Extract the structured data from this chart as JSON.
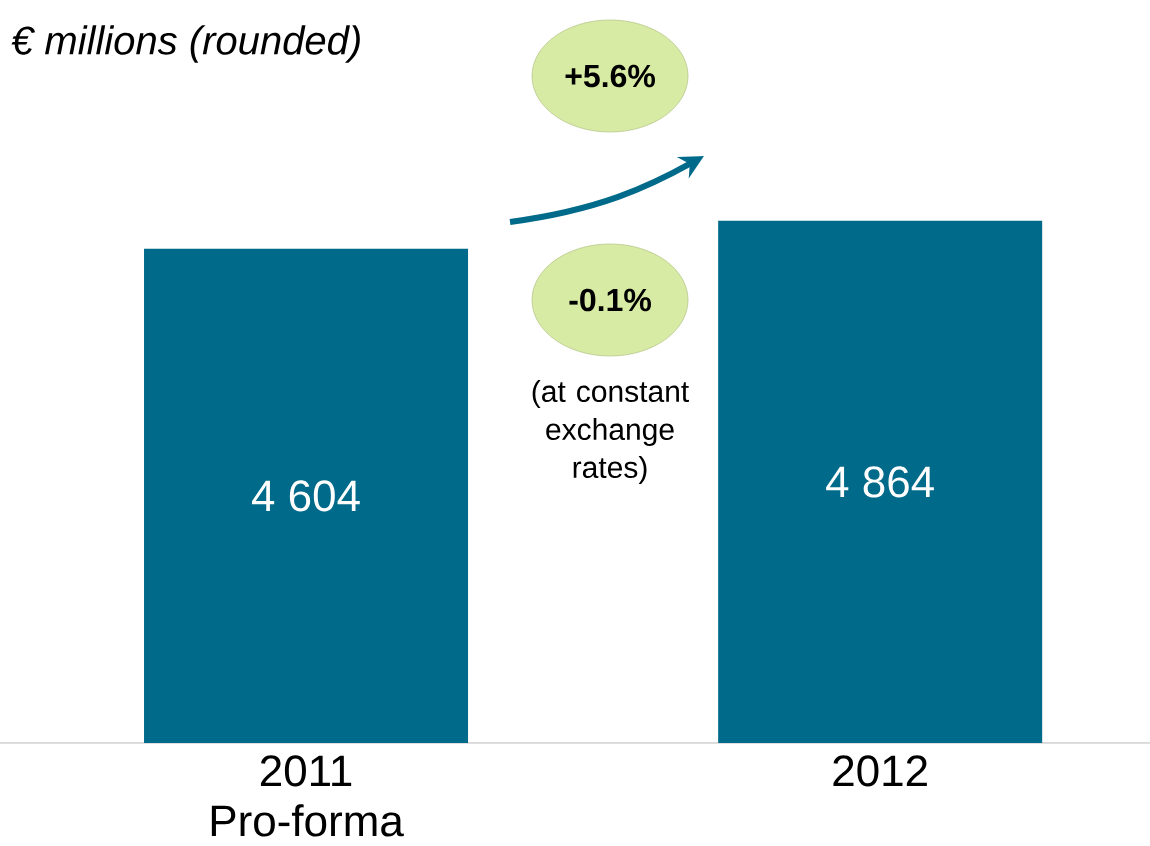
{
  "chart_data": {
    "type": "bar",
    "title": "€ millions (rounded)",
    "categories": [
      "2011 Pro-forma",
      "2012"
    ],
    "values": [
      4604,
      4864
    ],
    "color": "#006a8a",
    "value_labels": [
      "4 604",
      "4 864"
    ],
    "annotations": [
      "+5.6%",
      "-0.1%",
      "(at constant exchange rates)"
    ]
  }
}
